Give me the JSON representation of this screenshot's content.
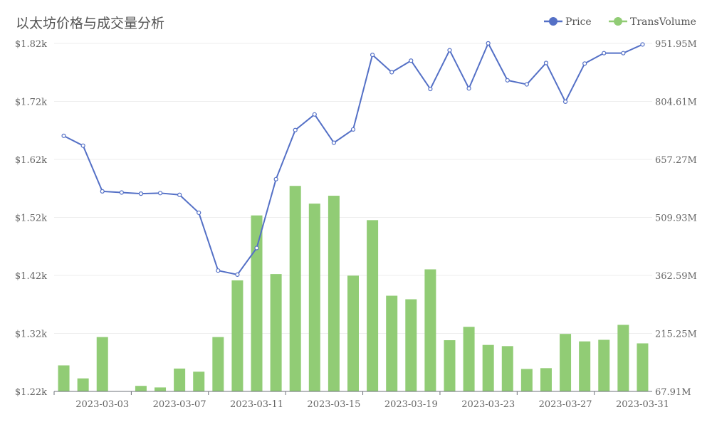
{
  "chart_data": {
    "type": "bar+line",
    "title": "以太坊价格与成交量分析",
    "legend": {
      "position": "top-right",
      "items": [
        {
          "label": "Price",
          "color": "#5470c6",
          "shape": "line-circle"
        },
        {
          "label": "TransVolume",
          "color": "#91cc75",
          "shape": "circle"
        }
      ]
    },
    "x_tick_labels": [
      "2023-03-03",
      "2023-03-07",
      "2023-03-11",
      "2023-03-15",
      "2023-03-19",
      "2023-03-23",
      "2023-03-27",
      "2023-03-31"
    ],
    "left_axis": {
      "ticks": [
        "$1.22k",
        "$1.32k",
        "$1.42k",
        "$1.52k",
        "$1.62k",
        "$1.72k",
        "$1.82k"
      ],
      "range": [
        1221.04,
        1822.82
      ]
    },
    "right_axis": {
      "ticks": [
        "67.91M",
        "215.25M",
        "362.59M",
        "509.93M",
        "657.27M",
        "804.61M",
        "951.95M"
      ],
      "range": [
        67.91,
        951.95
      ]
    },
    "grid": true,
    "dates": [
      "2023-03-01",
      "2023-03-02",
      "2023-03-03",
      "2023-03-04",
      "2023-03-05",
      "2023-03-06",
      "2023-03-07",
      "2023-03-08",
      "2023-03-09",
      "2023-03-10",
      "2023-03-11",
      "2023-03-12",
      "2023-03-13",
      "2023-03-14",
      "2023-03-15",
      "2023-03-16",
      "2023-03-17",
      "2023-03-18",
      "2023-03-19",
      "2023-03-20",
      "2023-03-21",
      "2023-03-22",
      "2023-03-23",
      "2023-03-24",
      "2023-03-25",
      "2023-03-26",
      "2023-03-27",
      "2023-03-28",
      "2023-03-29",
      "2023-03-30",
      "2023-03-31"
    ],
    "series": [
      {
        "name": "Price",
        "type": "line",
        "axis": "left",
        "color": "#5470c6",
        "values": [
          1663,
          1646,
          1567,
          1565,
          1563,
          1564,
          1561,
          1530,
          1430,
          1423,
          1469,
          1588,
          1673,
          1700,
          1651,
          1674,
          1803,
          1773,
          1793,
          1744,
          1811,
          1745,
          1823,
          1759,
          1752,
          1789,
          1722,
          1788,
          1806,
          1806,
          1821
        ]
      },
      {
        "name": "TransVolume",
        "type": "bar",
        "axis": "right",
        "color": "#91cc75",
        "values": [
          134,
          101,
          206,
          60,
          82,
          78,
          126,
          118,
          206,
          350,
          515,
          366,
          590,
          545,
          565,
          362,
          503,
          311,
          302,
          378,
          198,
          232,
          186,
          183,
          125,
          127,
          214,
          195,
          199,
          237,
          190
        ]
      }
    ]
  }
}
